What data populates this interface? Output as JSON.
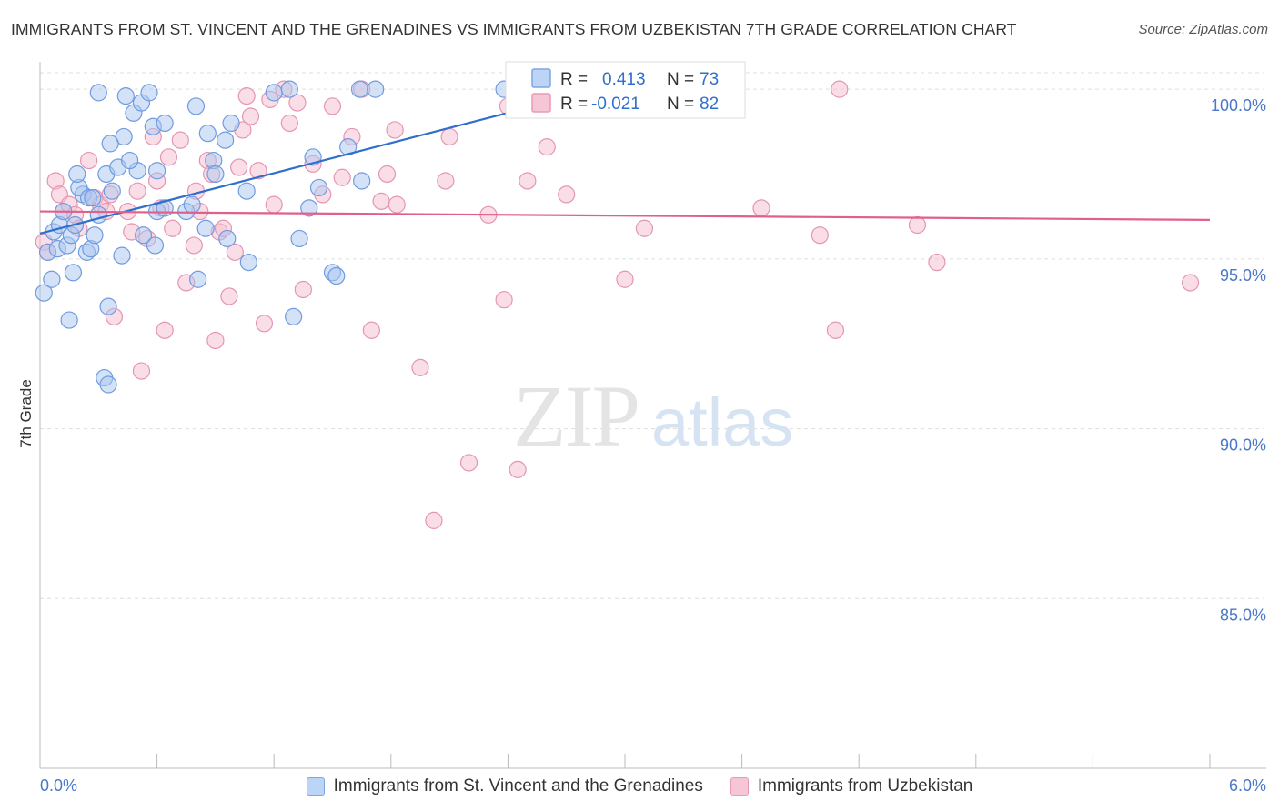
{
  "title": "IMMIGRANTS FROM ST. VINCENT AND THE GRENADINES VS IMMIGRANTS FROM UZBEKISTAN 7TH GRADE CORRELATION CHART",
  "source": "Source: ZipAtlas.com",
  "watermark": {
    "zip": "ZIP",
    "atlas": "atlas"
  },
  "colors": {
    "blue_fill": "#aac6f0",
    "blue_stroke": "#6f9be0",
    "blue_line": "#2f6fcc",
    "pink_fill": "#f5bdd0",
    "pink_stroke": "#e595b2",
    "pink_line": "#e0608c",
    "axis_label": "#4a78c8",
    "grid": "#dddddd"
  },
  "legend_box": {
    "blue": {
      "r_label": "R =",
      "r_value": "0.413",
      "n_label": "N =",
      "n_value": "73"
    },
    "pink": {
      "r_label": "R =",
      "r_value": "-0.021",
      "n_label": "N =",
      "n_value": "82"
    }
  },
  "chart_data": {
    "type": "scatter",
    "title": "IMMIGRANTS FROM ST. VINCENT AND THE GRENADINES VS IMMIGRANTS FROM UZBEKISTAN 7TH GRADE CORRELATION CHART",
    "xlabel": "",
    "ylabel": "7th Grade",
    "xlim": [
      0,
      6
    ],
    "ylim": [
      80,
      100.7
    ],
    "x_tick_labels": [
      "0.0%",
      "6.0%"
    ],
    "y_ticks": [
      85,
      90,
      95,
      100
    ],
    "y_tick_labels": [
      "85.0%",
      "90.0%",
      "95.0%",
      "100.0%"
    ],
    "grid": true,
    "legend_position": "top-center",
    "series": [
      {
        "name": "Immigrants from St. Vincent and the Grenadines",
        "color": "#aac6f0",
        "r": 0.413,
        "n": 73,
        "trend": {
          "x0": 0.0,
          "y0": 95.75,
          "x1": 2.87,
          "y1": 100.0
        },
        "points": [
          [
            0.02,
            94.0
          ],
          [
            0.06,
            94.4
          ],
          [
            0.15,
            93.2
          ],
          [
            0.35,
            93.6
          ],
          [
            0.33,
            91.5
          ],
          [
            0.35,
            91.3
          ],
          [
            0.04,
            95.2
          ],
          [
            0.09,
            95.3
          ],
          [
            0.07,
            95.8
          ],
          [
            0.1,
            96.0
          ],
          [
            0.14,
            95.4
          ],
          [
            0.17,
            94.6
          ],
          [
            0.16,
            95.7
          ],
          [
            0.24,
            95.2
          ],
          [
            0.26,
            95.3
          ],
          [
            0.28,
            95.7
          ],
          [
            0.3,
            96.3
          ],
          [
            0.22,
            96.9
          ],
          [
            0.2,
            97.1
          ],
          [
            0.19,
            97.5
          ],
          [
            0.12,
            96.4
          ],
          [
            0.25,
            96.8
          ],
          [
            0.27,
            96.8
          ],
          [
            0.34,
            97.5
          ],
          [
            0.37,
            97.0
          ],
          [
            0.4,
            97.7
          ],
          [
            0.43,
            98.6
          ],
          [
            0.36,
            98.4
          ],
          [
            0.3,
            99.9
          ],
          [
            0.44,
            99.8
          ],
          [
            0.48,
            99.3
          ],
          [
            0.52,
            99.6
          ],
          [
            0.56,
            99.9
          ],
          [
            0.5,
            97.6
          ],
          [
            0.46,
            97.9
          ],
          [
            0.58,
            98.9
          ],
          [
            0.64,
            99.0
          ],
          [
            0.6,
            97.6
          ],
          [
            0.42,
            95.1
          ],
          [
            0.53,
            95.7
          ],
          [
            0.59,
            95.4
          ],
          [
            0.6,
            96.4
          ],
          [
            0.64,
            96.5
          ],
          [
            0.75,
            96.4
          ],
          [
            0.8,
            99.5
          ],
          [
            0.86,
            98.7
          ],
          [
            0.95,
            98.5
          ],
          [
            0.98,
            99.0
          ],
          [
            0.89,
            97.9
          ],
          [
            0.9,
            97.5
          ],
          [
            0.85,
            95.9
          ],
          [
            0.96,
            95.6
          ],
          [
            0.81,
            94.4
          ],
          [
            1.06,
            97.0
          ],
          [
            1.07,
            94.9
          ],
          [
            1.2,
            99.9
          ],
          [
            1.28,
            100.0
          ],
          [
            1.33,
            95.6
          ],
          [
            1.38,
            96.5
          ],
          [
            1.4,
            98.0
          ],
          [
            1.43,
            97.1
          ],
          [
            1.5,
            94.6
          ],
          [
            1.52,
            94.5
          ],
          [
            1.58,
            98.3
          ],
          [
            1.65,
            97.3
          ],
          [
            1.64,
            100.0
          ],
          [
            1.72,
            100.0
          ],
          [
            1.3,
            93.3
          ],
          [
            2.38,
            100.0
          ],
          [
            2.55,
            99.8
          ],
          [
            2.65,
            100.0
          ],
          [
            0.78,
            96.6
          ],
          [
            0.18,
            96.0
          ]
        ]
      },
      {
        "name": "Immigrants from Uzbekistan",
        "color": "#f5bdd0",
        "r": -0.021,
        "n": 82,
        "trend": {
          "x0": 0.0,
          "y0": 96.4,
          "x1": 6.0,
          "y1": 96.15
        },
        "points": [
          [
            0.02,
            95.5
          ],
          [
            0.04,
            95.2
          ],
          [
            0.08,
            97.3
          ],
          [
            0.1,
            96.9
          ],
          [
            0.12,
            96.4
          ],
          [
            0.15,
            96.6
          ],
          [
            0.18,
            96.3
          ],
          [
            0.2,
            95.9
          ],
          [
            0.25,
            97.9
          ],
          [
            0.28,
            96.8
          ],
          [
            0.31,
            96.6
          ],
          [
            0.34,
            96.4
          ],
          [
            0.36,
            96.9
          ],
          [
            0.38,
            93.3
          ],
          [
            0.45,
            96.4
          ],
          [
            0.47,
            95.8
          ],
          [
            0.5,
            97.0
          ],
          [
            0.52,
            91.7
          ],
          [
            0.55,
            95.6
          ],
          [
            0.58,
            98.6
          ],
          [
            0.6,
            97.3
          ],
          [
            0.62,
            96.5
          ],
          [
            0.64,
            92.9
          ],
          [
            0.66,
            98.0
          ],
          [
            0.68,
            95.9
          ],
          [
            0.72,
            98.5
          ],
          [
            0.75,
            94.3
          ],
          [
            0.79,
            95.4
          ],
          [
            0.8,
            97.0
          ],
          [
            0.82,
            96.4
          ],
          [
            0.86,
            97.9
          ],
          [
            0.88,
            97.5
          ],
          [
            0.9,
            92.6
          ],
          [
            0.92,
            95.8
          ],
          [
            0.94,
            95.9
          ],
          [
            0.97,
            93.9
          ],
          [
            1.0,
            95.2
          ],
          [
            1.02,
            97.7
          ],
          [
            1.04,
            98.8
          ],
          [
            1.06,
            99.8
          ],
          [
            1.08,
            99.2
          ],
          [
            1.12,
            97.6
          ],
          [
            1.15,
            93.1
          ],
          [
            1.18,
            99.7
          ],
          [
            1.2,
            96.6
          ],
          [
            1.25,
            100.0
          ],
          [
            1.28,
            99.0
          ],
          [
            1.32,
            99.6
          ],
          [
            1.35,
            94.1
          ],
          [
            1.4,
            97.8
          ],
          [
            1.45,
            96.9
          ],
          [
            1.5,
            99.5
          ],
          [
            1.55,
            97.4
          ],
          [
            1.6,
            98.6
          ],
          [
            1.65,
            100.0
          ],
          [
            1.7,
            92.9
          ],
          [
            1.75,
            96.7
          ],
          [
            1.78,
            97.5
          ],
          [
            1.82,
            98.8
          ],
          [
            1.83,
            96.6
          ],
          [
            1.95,
            91.8
          ],
          [
            2.02,
            87.3
          ],
          [
            2.08,
            97.3
          ],
          [
            2.1,
            98.6
          ],
          [
            2.2,
            89.0
          ],
          [
            2.3,
            96.3
          ],
          [
            2.38,
            93.8
          ],
          [
            2.4,
            99.5
          ],
          [
            2.45,
            88.8
          ],
          [
            2.5,
            97.3
          ],
          [
            2.6,
            98.3
          ],
          [
            2.7,
            96.9
          ],
          [
            3.0,
            94.4
          ],
          [
            3.1,
            95.9
          ],
          [
            3.7,
            96.5
          ],
          [
            4.0,
            95.7
          ],
          [
            4.08,
            92.9
          ],
          [
            4.1,
            100.0
          ],
          [
            4.5,
            96.0
          ],
          [
            4.6,
            94.9
          ],
          [
            5.9,
            94.3
          ],
          [
            2.85,
            100.0
          ]
        ]
      }
    ]
  }
}
